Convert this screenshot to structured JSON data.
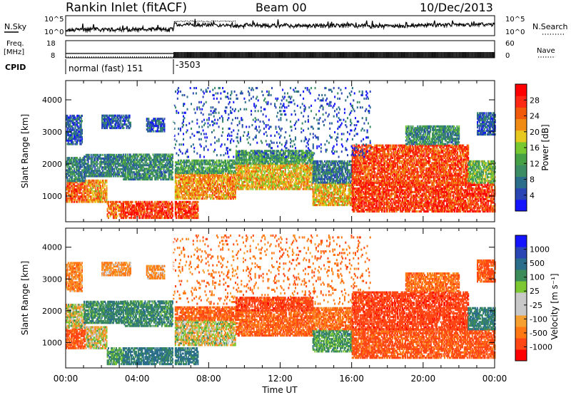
{
  "header": {
    "station": "Rankin Inlet (fitACF)",
    "beam": "Beam 00",
    "date": "10/Dec/2013"
  },
  "status_panels": {
    "nsky_label": "N.Sky",
    "nsearch_label": "N.Search",
    "freq_label_top": "Freq.",
    "freq_label_bottom": "[MHz]",
    "nave_label": "Nave",
    "cpid_label": "CPID",
    "noise_ticks": [
      "10^5",
      "10^0"
    ],
    "freq_ticks": [
      "18",
      "8"
    ],
    "nave_ticks": [
      "60",
      "0"
    ],
    "cpid_segments": [
      {
        "start_hour": 0,
        "end_hour": 6.05,
        "label": "normal (fast) 151"
      },
      {
        "start_hour": 6.05,
        "end_hour": 24,
        "label": "-3503"
      }
    ],
    "freq_level_mhz": 10.5
  },
  "colors": {
    "power_scale": [
      "#1414ff",
      "#2a46b4",
      "#2a6e8c",
      "#3c8c64",
      "#46a046",
      "#78c832",
      "#e6c81e",
      "#f08c14",
      "#f05a0a",
      "#ff2814",
      "#ff0000"
    ],
    "velocity_scale": [
      "#ff0000",
      "#ff4614",
      "#ff7814",
      "#f5a030",
      "#c8c8c8",
      "#c8c8c8",
      "#7cc832",
      "#3c8c5a",
      "#2a6e8c",
      "#2a46b4",
      "#1414ff"
    ]
  },
  "chart_data": [
    {
      "type": "heatmap",
      "name": "power-panel",
      "xlabel": "",
      "ylabel": "Slant Range [km]",
      "xlim": [
        0,
        24
      ],
      "ylim": [
        200,
        4600
      ],
      "yticks": [
        "1000",
        "2000",
        "3000",
        "4000"
      ],
      "colorbar": {
        "label": "Power [dB]",
        "ticks": [
          "4",
          "8",
          "12",
          "16",
          "20",
          "24",
          "28"
        ],
        "range": [
          0,
          32
        ]
      },
      "regions": [
        {
          "t0": 0.0,
          "t1": 1.1,
          "r0": 800,
          "r1": 1450,
          "v": 25
        },
        {
          "t0": 0.0,
          "t1": 1.1,
          "r0": 1450,
          "r1": 2200,
          "v": 9
        },
        {
          "t0": 0.0,
          "t1": 0.9,
          "r0": 2600,
          "r1": 3500,
          "v": 6
        },
        {
          "t0": 1.1,
          "t1": 2.3,
          "r0": 800,
          "r1": 1500,
          "v": 22
        },
        {
          "t0": 1.0,
          "t1": 2.5,
          "r0": 1600,
          "r1": 2300,
          "v": 8
        },
        {
          "t0": 2.3,
          "t1": 3.2,
          "r0": 300,
          "r1": 800,
          "v": 24
        },
        {
          "t0": 2.3,
          "t1": 3.2,
          "r0": 1600,
          "r1": 2300,
          "v": 9
        },
        {
          "t0": 3.2,
          "t1": 6.0,
          "r0": 300,
          "r1": 800,
          "v": 27
        },
        {
          "t0": 3.2,
          "t1": 6.0,
          "r0": 1500,
          "r1": 2300,
          "v": 10
        },
        {
          "t0": 2.0,
          "t1": 3.6,
          "r0": 3100,
          "r1": 3500,
          "v": 6
        },
        {
          "t0": 4.5,
          "t1": 5.5,
          "r0": 3000,
          "r1": 3400,
          "v": 6
        },
        {
          "t0": 6.1,
          "t1": 7.4,
          "r0": 300,
          "r1": 800,
          "v": 26
        },
        {
          "t0": 6.1,
          "t1": 9.5,
          "r0": 900,
          "r1": 1700,
          "v": 22
        },
        {
          "t0": 6.1,
          "t1": 9.5,
          "r0": 1700,
          "r1": 2100,
          "v": 12
        },
        {
          "t0": 9.5,
          "t1": 13.8,
          "r0": 1200,
          "r1": 2000,
          "v": 20
        },
        {
          "t0": 9.5,
          "t1": 13.8,
          "r0": 2000,
          "r1": 2400,
          "v": 12
        },
        {
          "t0": 13.8,
          "t1": 16.0,
          "r0": 700,
          "r1": 1400,
          "v": 20
        },
        {
          "t0": 13.8,
          "t1": 16.0,
          "r0": 1400,
          "r1": 2100,
          "v": 8
        },
        {
          "t0": 16.0,
          "t1": 24.0,
          "r0": 500,
          "r1": 1400,
          "v": 27
        },
        {
          "t0": 16.0,
          "t1": 22.5,
          "r0": 1400,
          "r1": 2600,
          "v": 26
        },
        {
          "t0": 19.0,
          "t1": 22.0,
          "r0": 2600,
          "r1": 3200,
          "v": 10
        },
        {
          "t0": 22.5,
          "t1": 24.0,
          "r0": 1400,
          "r1": 2100,
          "v": 14
        },
        {
          "t0": 23.0,
          "t1": 24.0,
          "r0": 2900,
          "r1": 3600,
          "v": 6
        },
        {
          "t0": 6.0,
          "t1": 17.0,
          "r0": 2200,
          "r1": 4400,
          "v": 5,
          "sparse": true
        }
      ]
    },
    {
      "type": "heatmap",
      "name": "velocity-panel",
      "xlabel": "Time UT",
      "ylabel": "Slant Range [km]",
      "xlim": [
        0,
        24
      ],
      "ylim": [
        200,
        4600
      ],
      "yticks": [
        "1000",
        "2000",
        "3000",
        "4000"
      ],
      "xticks": [
        "00:00",
        "04:00",
        "08:00",
        "12:00",
        "16:00",
        "20:00",
        "00:00"
      ],
      "colorbar": {
        "label": "Velocity [m s⁻¹]",
        "ticks": [
          "1000",
          "500",
          "100",
          "25",
          "-25",
          "-100",
          "-500",
          "-1000"
        ],
        "range": [
          -1000,
          1000
        ]
      },
      "regions": [
        {
          "t0": 0.0,
          "t1": 1.1,
          "r0": 800,
          "r1": 1450,
          "v": -300
        },
        {
          "t0": 0.0,
          "t1": 1.1,
          "r0": 1450,
          "r1": 2200,
          "v": 10
        },
        {
          "t0": 0.0,
          "t1": 0.9,
          "r0": 2600,
          "r1": 3500,
          "v": -150
        },
        {
          "t0": 1.1,
          "t1": 2.3,
          "r0": 800,
          "r1": 1500,
          "v": -10
        },
        {
          "t0": 1.0,
          "t1": 2.5,
          "r0": 1600,
          "r1": 2300,
          "v": 200
        },
        {
          "t0": 2.3,
          "t1": 3.2,
          "r0": 300,
          "r1": 800,
          "v": 150
        },
        {
          "t0": 2.3,
          "t1": 3.2,
          "r0": 1600,
          "r1": 2300,
          "v": 250
        },
        {
          "t0": 3.2,
          "t1": 6.0,
          "r0": 300,
          "r1": 800,
          "v": 300
        },
        {
          "t0": 3.2,
          "t1": 6.0,
          "r0": 1500,
          "r1": 2300,
          "v": 200
        },
        {
          "t0": 2.0,
          "t1": 3.6,
          "r0": 3100,
          "r1": 3500,
          "v": -120
        },
        {
          "t0": 4.5,
          "t1": 5.5,
          "r0": 3000,
          "r1": 3400,
          "v": -120
        },
        {
          "t0": 6.1,
          "t1": 7.4,
          "r0": 300,
          "r1": 800,
          "v": 300
        },
        {
          "t0": 6.1,
          "t1": 9.5,
          "r0": 900,
          "r1": 1700,
          "v": 5
        },
        {
          "t0": 6.1,
          "t1": 9.5,
          "r0": 1700,
          "r1": 2100,
          "v": -250
        },
        {
          "t0": 9.5,
          "t1": 13.8,
          "r0": 1200,
          "r1": 2000,
          "v": -250
        },
        {
          "t0": 9.5,
          "t1": 13.8,
          "r0": 2000,
          "r1": 2400,
          "v": -400
        },
        {
          "t0": 13.8,
          "t1": 16.0,
          "r0": 700,
          "r1": 1400,
          "v": 150
        },
        {
          "t0": 13.8,
          "t1": 16.0,
          "r0": 1400,
          "r1": 2100,
          "v": -200
        },
        {
          "t0": 16.0,
          "t1": 24.0,
          "r0": 500,
          "r1": 1400,
          "v": -300
        },
        {
          "t0": 16.0,
          "t1": 22.5,
          "r0": 1400,
          "r1": 2600,
          "v": -400
        },
        {
          "t0": 19.0,
          "t1": 22.0,
          "r0": 2600,
          "r1": 3200,
          "v": -200
        },
        {
          "t0": 22.5,
          "t1": 24.0,
          "r0": 1400,
          "r1": 2100,
          "v": 250
        },
        {
          "t0": 23.0,
          "t1": 24.0,
          "r0": 2900,
          "r1": 3600,
          "v": -300
        },
        {
          "t0": 6.0,
          "t1": 17.0,
          "r0": 2200,
          "r1": 4400,
          "v": -200,
          "sparse": true
        }
      ]
    }
  ]
}
